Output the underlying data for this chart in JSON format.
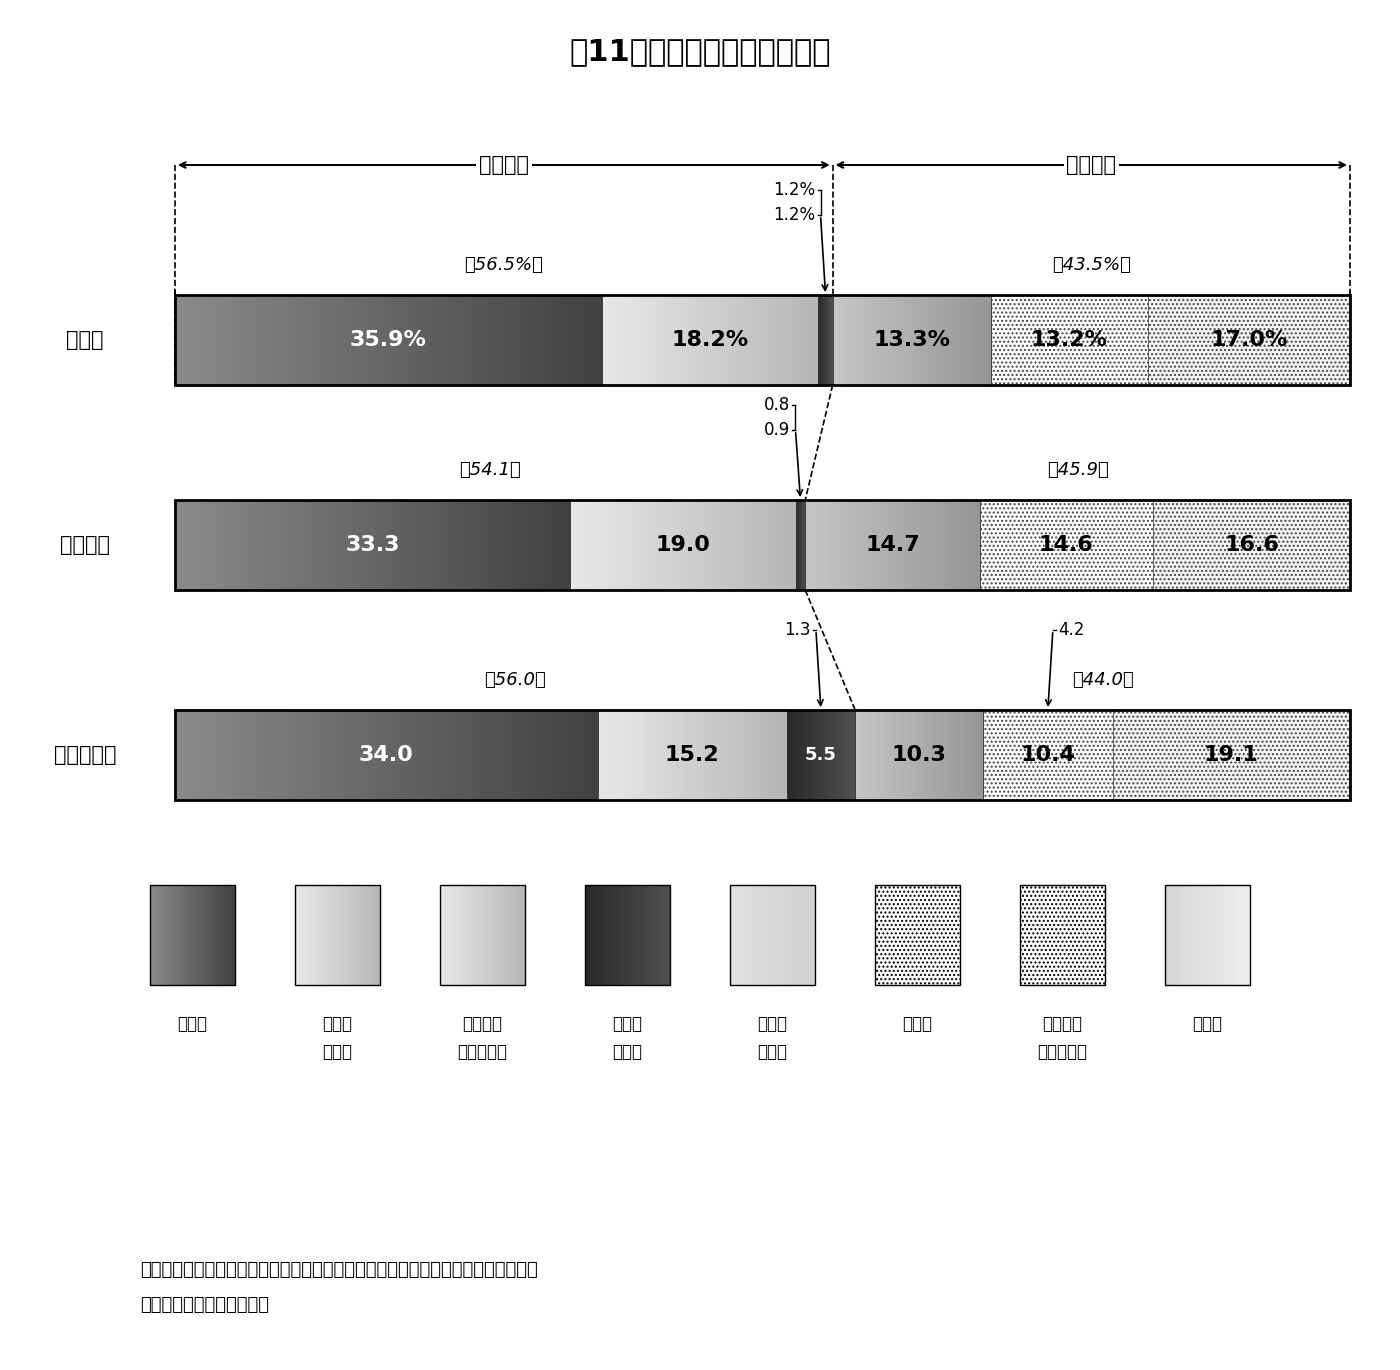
{
  "title": "第11図　歳入決算額の構成比",
  "rows": [
    {
      "label": "純　計",
      "values": [
        35.9,
        18.2,
        1.2,
        13.3,
        13.2,
        17.0
      ],
      "general_pct": "（56.5%）",
      "specific_pct": "（43.5%）",
      "ann1_text": "1.2%",
      "ann2_text": "1.2%"
    },
    {
      "label": "都道府県",
      "values": [
        33.3,
        19.0,
        0.8,
        14.7,
        14.6,
        16.6
      ],
      "general_pct": "（54.1）",
      "specific_pct": "（45.9）",
      "ann1_text": "0.8",
      "ann2_text": "0.9"
    },
    {
      "label": "市　町　村",
      "values": [
        34.0,
        15.2,
        5.5,
        10.3,
        10.4,
        19.1
      ],
      "general_pct": "（56.0）",
      "specific_pct": "（44.0）",
      "ann1_text": "1.3",
      "ann2_text": "4.2"
    }
  ],
  "bar_labels_row0": [
    "35.9%",
    "18.2%",
    "",
    "13.3%",
    "13.2%",
    "17.0%"
  ],
  "bar_labels_row1": [
    "33.3",
    "19.0",
    "",
    "14.7",
    "14.6",
    "16.6"
  ],
  "bar_labels_row2": [
    "34.0",
    "15.2",
    "5.5",
    "10.3",
    "10.4",
    "19.1"
  ],
  "seg_text_colors": [
    "white",
    "black",
    "white",
    "black",
    "black",
    "black"
  ],
  "general_label": "一般財源",
  "specific_label": "特定財源",
  "legend_items": [
    {
      "label1": "地方税",
      "label2": ""
    },
    {
      "label1": "地　方",
      "label2": "交付税"
    },
    {
      "label1": "地方特例",
      "label2": "交　付　金"
    },
    {
      "label1": "地方譲",
      "label2": "与税等"
    },
    {
      "label1": "国　庫",
      "label2": "支出金"
    },
    {
      "label1": "地方債",
      "label2": ""
    },
    {
      "label1": "都道府県",
      "label2": "支　出　金"
    },
    {
      "label1": "その他",
      "label2": ""
    }
  ],
  "note_line1": "（注）　国庫支出金には、交通安全対策特別交付金及び国有提供施設等所在市町村",
  "note_line2": "　　　助成交付金を含む。"
}
